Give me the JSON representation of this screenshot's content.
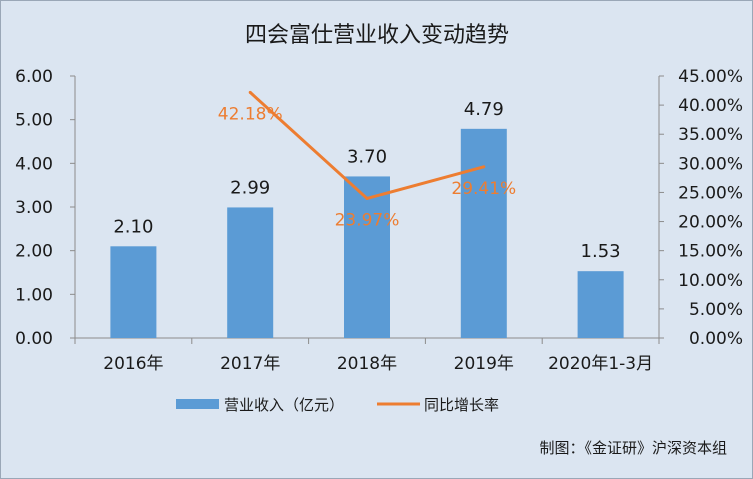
{
  "chart_data": {
    "type": "bar",
    "title": "四会富仕营业收入变动趋势",
    "categories": [
      "2016年",
      "2017年",
      "2018年",
      "2019年",
      "2020年1-3月"
    ],
    "series": [
      {
        "name": "营业收入（亿元）",
        "type": "bar",
        "axis": "left",
        "values": [
          2.1,
          2.99,
          3.7,
          4.79,
          1.53
        ],
        "labels": [
          "2.10",
          "2.99",
          "3.70",
          "4.79",
          "1.53"
        ],
        "color": "#5b9bd5"
      },
      {
        "name": "同比增长率",
        "type": "line",
        "axis": "right",
        "points": [
          {
            "category": "2017年",
            "value": 42.18,
            "label": "42.18%"
          },
          {
            "category": "2018年",
            "value": 23.97,
            "label": "23.97%"
          },
          {
            "category": "2019年",
            "value": 29.41,
            "label": "29.41%"
          }
        ],
        "color": "#ed7d31"
      }
    ],
    "ylim": [
      0,
      6
    ],
    "yticks": [
      "0.00",
      "1.00",
      "2.00",
      "3.00",
      "4.00",
      "5.00",
      "6.00"
    ],
    "y2lim": [
      0,
      45
    ],
    "y2ticks": [
      "0.00%",
      "5.00%",
      "10.00%",
      "15.00%",
      "20.00%",
      "25.00%",
      "30.00%",
      "35.00%",
      "40.00%",
      "45.00%"
    ],
    "grid": false,
    "legend_position": "bottom",
    "background": "#dbe5f1"
  },
  "credit": "制图：《金证研》沪深资本组"
}
